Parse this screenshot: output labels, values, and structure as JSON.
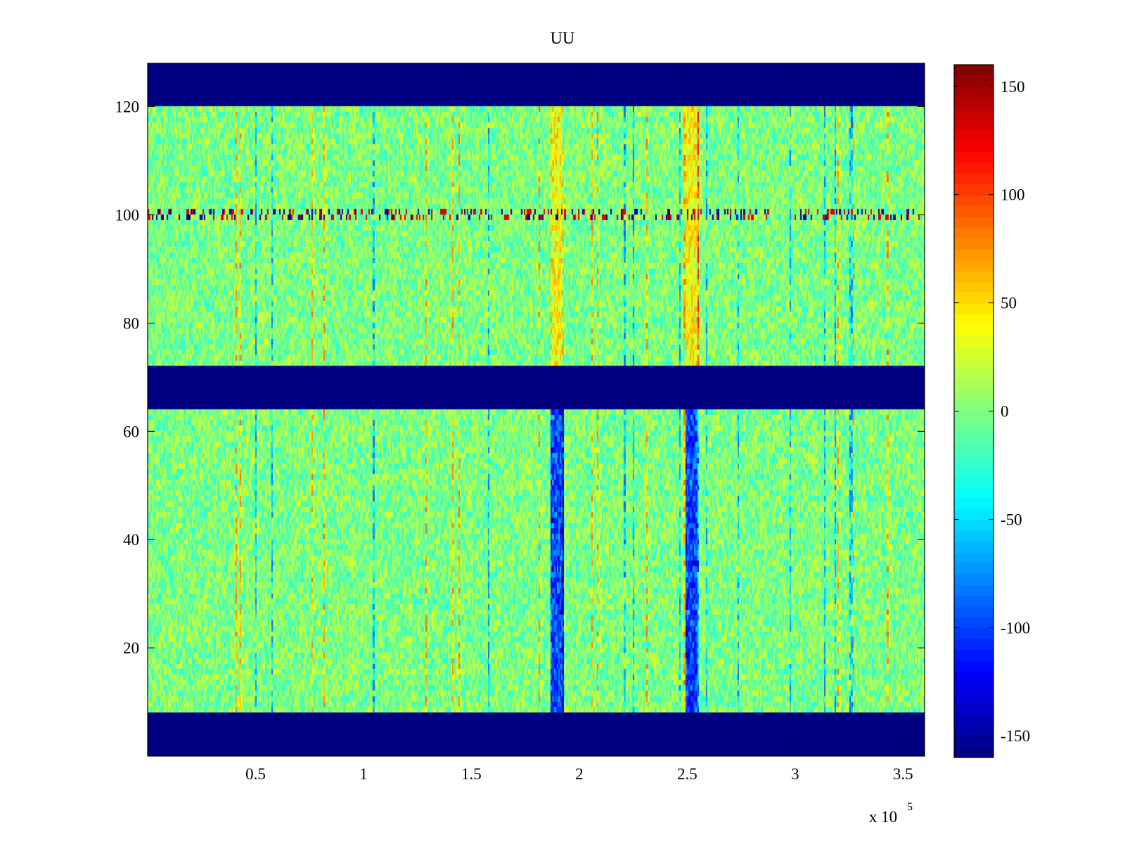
{
  "chart_data": {
    "type": "heatmap",
    "title": "UU",
    "xlabel": "",
    "ylabel": "",
    "x_range": [
      0,
      360000
    ],
    "y_range": [
      0,
      128
    ],
    "x_ticks": [
      50000,
      100000,
      150000,
      200000,
      250000,
      300000,
      350000
    ],
    "x_tick_labels": [
      "0.5",
      "1",
      "1.5",
      "2",
      "2.5",
      "3",
      "3.5"
    ],
    "x_exponent_label": "x 10",
    "x_exponent_power": "5",
    "y_ticks": [
      20,
      40,
      60,
      80,
      100,
      120
    ],
    "y_tick_labels": [
      "20",
      "40",
      "60",
      "80",
      "100",
      "120"
    ],
    "colorbar": {
      "range": [
        -160,
        160
      ],
      "ticks": [
        -150,
        -100,
        -50,
        0,
        50,
        100,
        150
      ],
      "tick_labels": [
        "-150",
        "-100",
        "-50",
        "0",
        "50",
        "100",
        "150"
      ],
      "colormap": "jet"
    },
    "masked_row_bands": [
      [
        0,
        8
      ],
      [
        64,
        72
      ],
      [
        120,
        128
      ]
    ],
    "mask_value": -160,
    "baseline_value": 0,
    "bright_column_centers": [
      190000,
      252000
    ],
    "bright_column_effect_upper_band": 40,
    "bright_column_effect_lower_band": -120,
    "anomaly_row": 100,
    "grid": false,
    "colors": {
      "mask": "#00008f",
      "axes": "#000000",
      "background": "#ffffff"
    }
  }
}
